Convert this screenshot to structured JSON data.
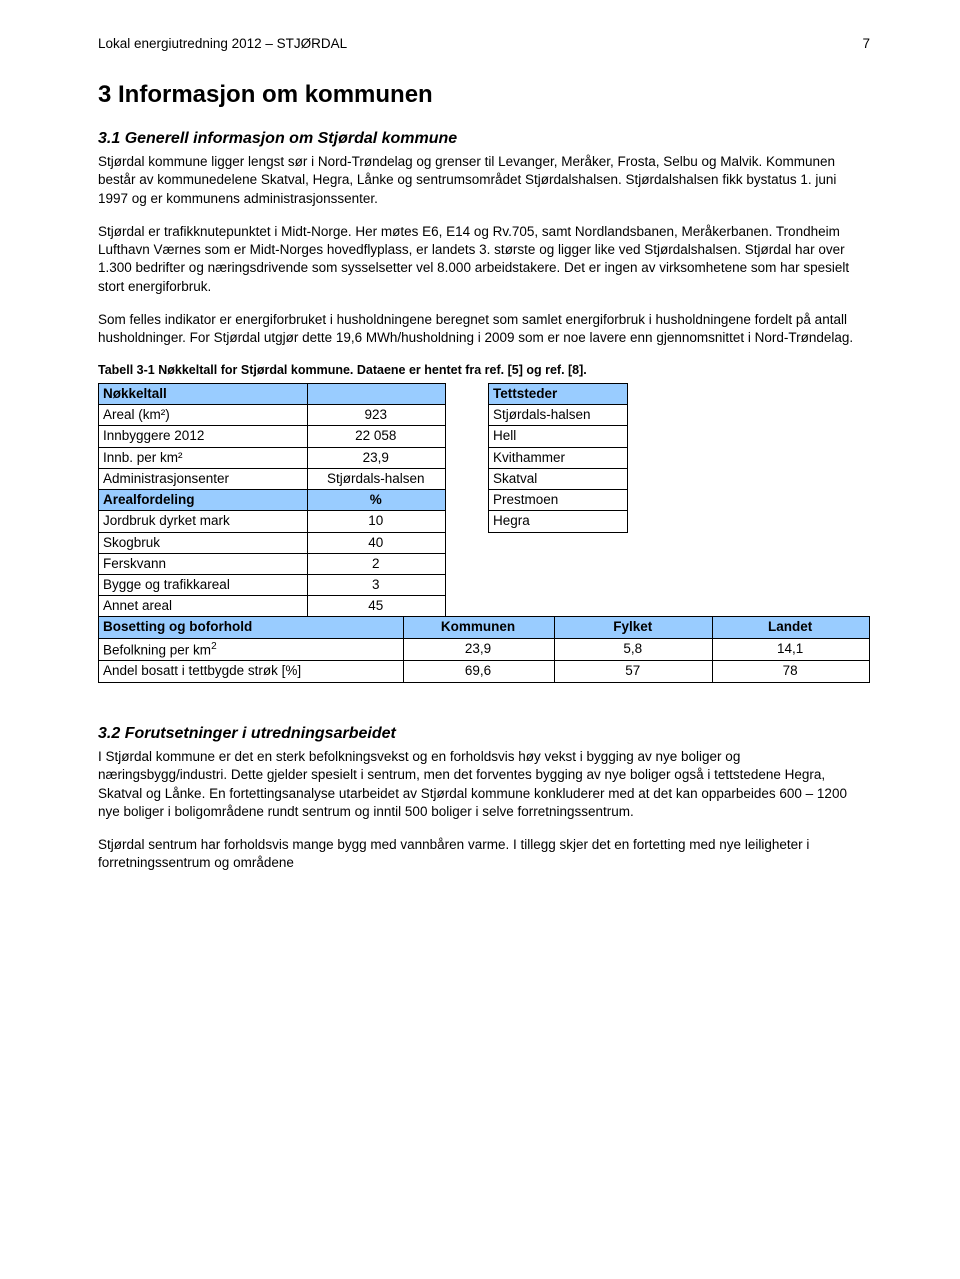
{
  "header": {
    "left": "Lokal energiutredning 2012 – STJØRDAL",
    "page_number": "7"
  },
  "section": {
    "number_title": "3 Informasjon om kommunen",
    "sub1_title": "3.1 Generell informasjon om Stjørdal kommune",
    "para1": "Stjørdal kommune ligger lengst sør i Nord-Trøndelag og grenser til Levanger, Meråker, Frosta, Selbu og Malvik. Kommunen består av kommunedelene Skatval, Hegra, Lånke og sentrumsområdet Stjørdalshalsen. Stjørdalshalsen fikk bystatus 1. juni 1997 og er kommunens administrasjonssenter.",
    "para2": "Stjørdal er trafikknutepunktet i Midt-Norge. Her møtes E6, E14 og Rv.705, samt Nordlandsbanen, Meråkerbanen. Trondheim Lufthavn Værnes som er Midt-Norges hovedflyplass, er landets 3. største og ligger like ved Stjørdalshalsen. Stjørdal har over 1.300 bedrifter og næringsdrivende som sysselsetter vel 8.000 arbeidstakere. Det er ingen av virksomhetene som har spesielt stort energiforbruk.",
    "para3": "Som felles indikator er energiforbruket i husholdningene beregnet som samlet energiforbruk i husholdningene fordelt på antall husholdninger. For Stjørdal utgjør dette 19,6 MWh/husholdning i 2009 som er noe lavere enn gjennomsnittet i Nord-Trøndelag.",
    "table_caption": "Tabell 3-1 Nøkkeltall for Stjørdal kommune. Dataene er hentet fra ref. [5] og ref. [8].",
    "sub2_title": "3.2 Forutsetninger i utredningsarbeidet",
    "para4": "I Stjørdal kommune er det en sterk befolkningsvekst og en forholdsvis høy vekst i bygging av nye boliger og næringsbygg/industri. Dette gjelder spesielt i sentrum, men det forventes bygging av nye boliger også i tettstedene Hegra, Skatval og Lånke. En fortettingsanalyse utarbeidet av Stjørdal kommune konkluderer med at det kan opparbeides 600 – 1200 nye boliger i boligområdene rundt sentrum og inntil 500 boliger i selve forretningssentrum.",
    "para5": "Stjørdal sentrum har forholdsvis mange bygg med vannbåren varme. I tillegg skjer det en fortetting med nye leiligheter i forretningssentrum og områdene"
  },
  "table_left": {
    "hdr1": "Nøkkeltall",
    "r1_label": "Areal (km²)",
    "r1_val": "923",
    "r2_label": "Innbyggere 2012",
    "r2_val": "22 058",
    "r3_label": "Innb. per km²",
    "r3_val": "23,9",
    "r4_label": "Administrasjonsenter",
    "r4_val": "Stjørdals-halsen",
    "hdr2": "Arealfordeling",
    "hdr2_val": "%",
    "r5_label": "Jordbruk dyrket mark",
    "r5_val": "10",
    "r6_label": "Skogbruk",
    "r6_val": "40",
    "r7_label": "Ferskvann",
    "r7_val": "2",
    "r8_label": "Bygge og trafikkareal",
    "r8_val": "3",
    "r9_label": "Annet areal",
    "r9_val": "45"
  },
  "table_right": {
    "hdr": "Tettsteder",
    "r1": "Stjørdals-halsen",
    "r2": "Hell",
    "r3": "Kvithammer",
    "r4": "Skatval",
    "r5": "Prestmoen",
    "r6": "Hegra"
  },
  "table_wide": {
    "h1": "Bosetting og boforhold",
    "h2": "Kommunen",
    "h3": "Fylket",
    "h4": "Landet",
    "r1_label_a": "Befolkning per km",
    "r1_label_sup": "2",
    "r1_v1": "23,9",
    "r1_v2": "5,8",
    "r1_v3": "14,1",
    "r2_label": "Andel bosatt i tettbygde strøk [%]",
    "r2_v1": "69,6",
    "r2_v2": "57",
    "r2_v3": "78"
  },
  "colors": {
    "header_bg": "#99ccff",
    "border": "#000000",
    "text": "#000000",
    "background": "#ffffff"
  }
}
